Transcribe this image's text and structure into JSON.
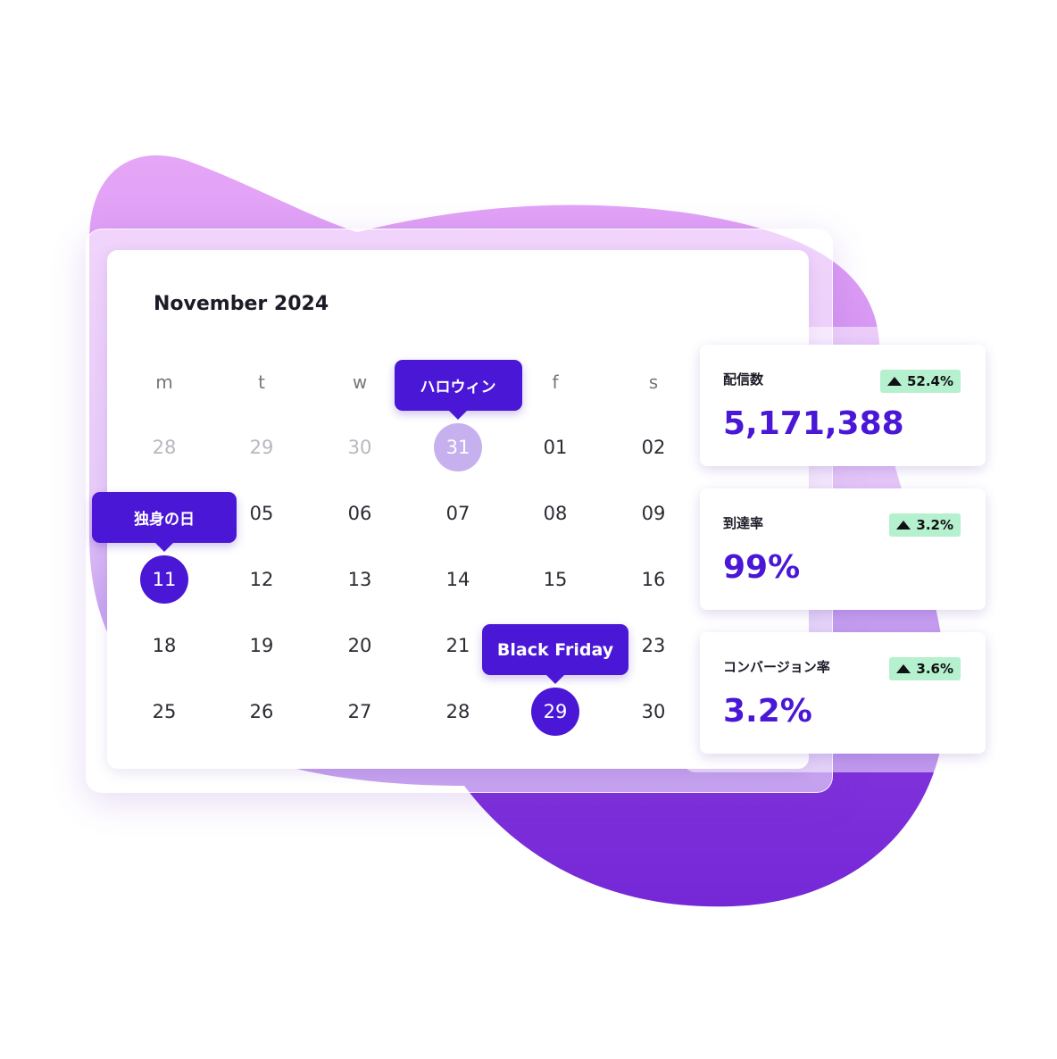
{
  "calendar": {
    "title": "November 2024",
    "weekdays": [
      "m",
      "t",
      "w",
      null,
      "f",
      "s"
    ],
    "weeks": [
      [
        "28",
        "29",
        "30",
        "31",
        "01",
        "02"
      ],
      [
        null,
        "05",
        "06",
        "07",
        "08",
        "09"
      ],
      [
        "11",
        "12",
        "13",
        "14",
        "15",
        "16"
      ],
      [
        "18",
        "19",
        "20",
        "21",
        null,
        "23"
      ],
      [
        "25",
        "26",
        "27",
        "28",
        "29",
        "30"
      ]
    ],
    "events": [
      {
        "label": "ハロウィン",
        "week": 0,
        "day": 3,
        "style": "light"
      },
      {
        "label": "独身の日",
        "week": 2,
        "day": 0,
        "style": "dark"
      },
      {
        "label": "Black Friday",
        "week": 4,
        "day": 4,
        "style": "dark"
      }
    ]
  },
  "stats": [
    {
      "label": "配信数",
      "change": "52.4%",
      "value": "5,171,388"
    },
    {
      "label": "到達率",
      "change": "3.2%",
      "value": "99%"
    },
    {
      "label": "コンバージョン率",
      "change": "3.6%",
      "value": "3.2%"
    }
  ]
}
